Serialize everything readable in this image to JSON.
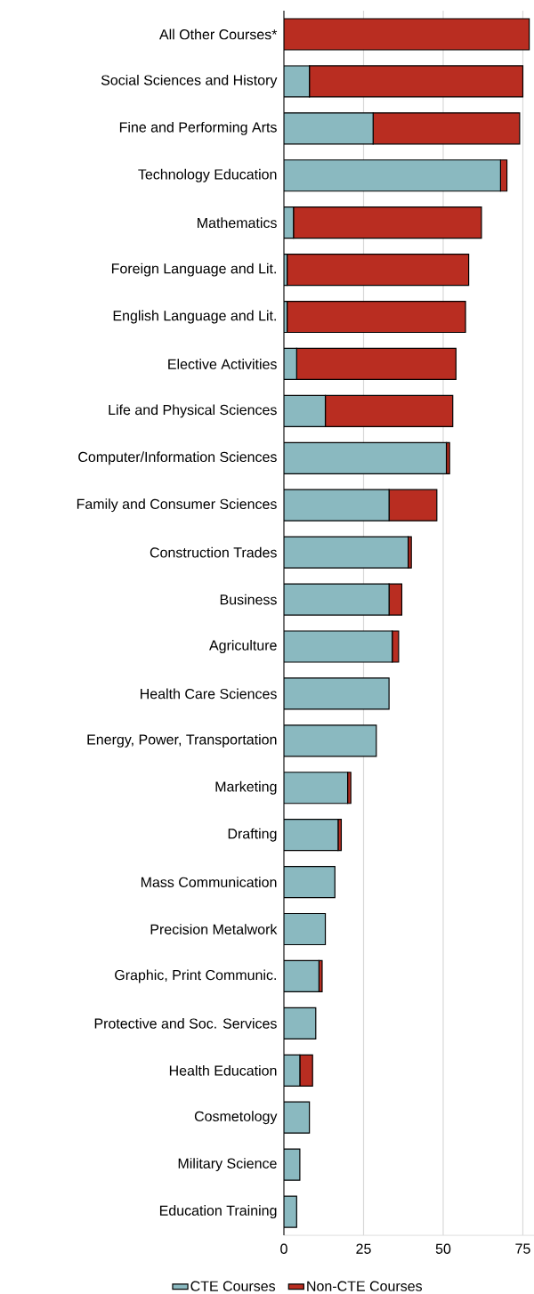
{
  "chart_data": {
    "type": "bar",
    "orientation": "horizontal",
    "stacked": true,
    "categories": [
      "All Other Courses*",
      "Social Sciences and History",
      "Fine and Performing Arts",
      "Technology Education",
      "Mathematics",
      "Foreign Language and Lit.",
      "English Language and Lit.",
      "Elective Activities",
      "Life and Physical Sciences",
      "Computer/Information Sciences",
      "Family and Consumer Sciences",
      "Construction Trades",
      "Business",
      "Agriculture",
      "Health Care Sciences",
      "Energy, Power, Transportation",
      "Marketing",
      "Drafting",
      "Mass Communication",
      "Precision Metalwork",
      "Graphic, Print Communic.",
      "Protective and Soc. Services",
      "Health Education",
      "Cosmetology",
      "Military Science",
      "Education Training"
    ],
    "series": [
      {
        "name": "CTE Courses",
        "color": "#8ab9c0",
        "values": [
          0,
          8,
          28,
          68,
          3,
          1,
          1,
          4,
          13,
          51,
          33,
          39,
          33,
          34,
          33,
          29,
          20,
          17,
          16,
          13,
          11,
          10,
          5,
          8,
          5,
          4
        ]
      },
      {
        "name": "Non-CTE Courses",
        "color": "#b92d21",
        "values": [
          77,
          67,
          46,
          2,
          59,
          57,
          56,
          50,
          40,
          1,
          15,
          1,
          4,
          2,
          0,
          0,
          1,
          1,
          0,
          0,
          1,
          0,
          4,
          0,
          0,
          0
        ]
      }
    ],
    "xlim": [
      0,
      78.5
    ],
    "xticks": [
      0,
      25,
      50,
      75
    ],
    "grid": "x",
    "legend": "bottom"
  }
}
